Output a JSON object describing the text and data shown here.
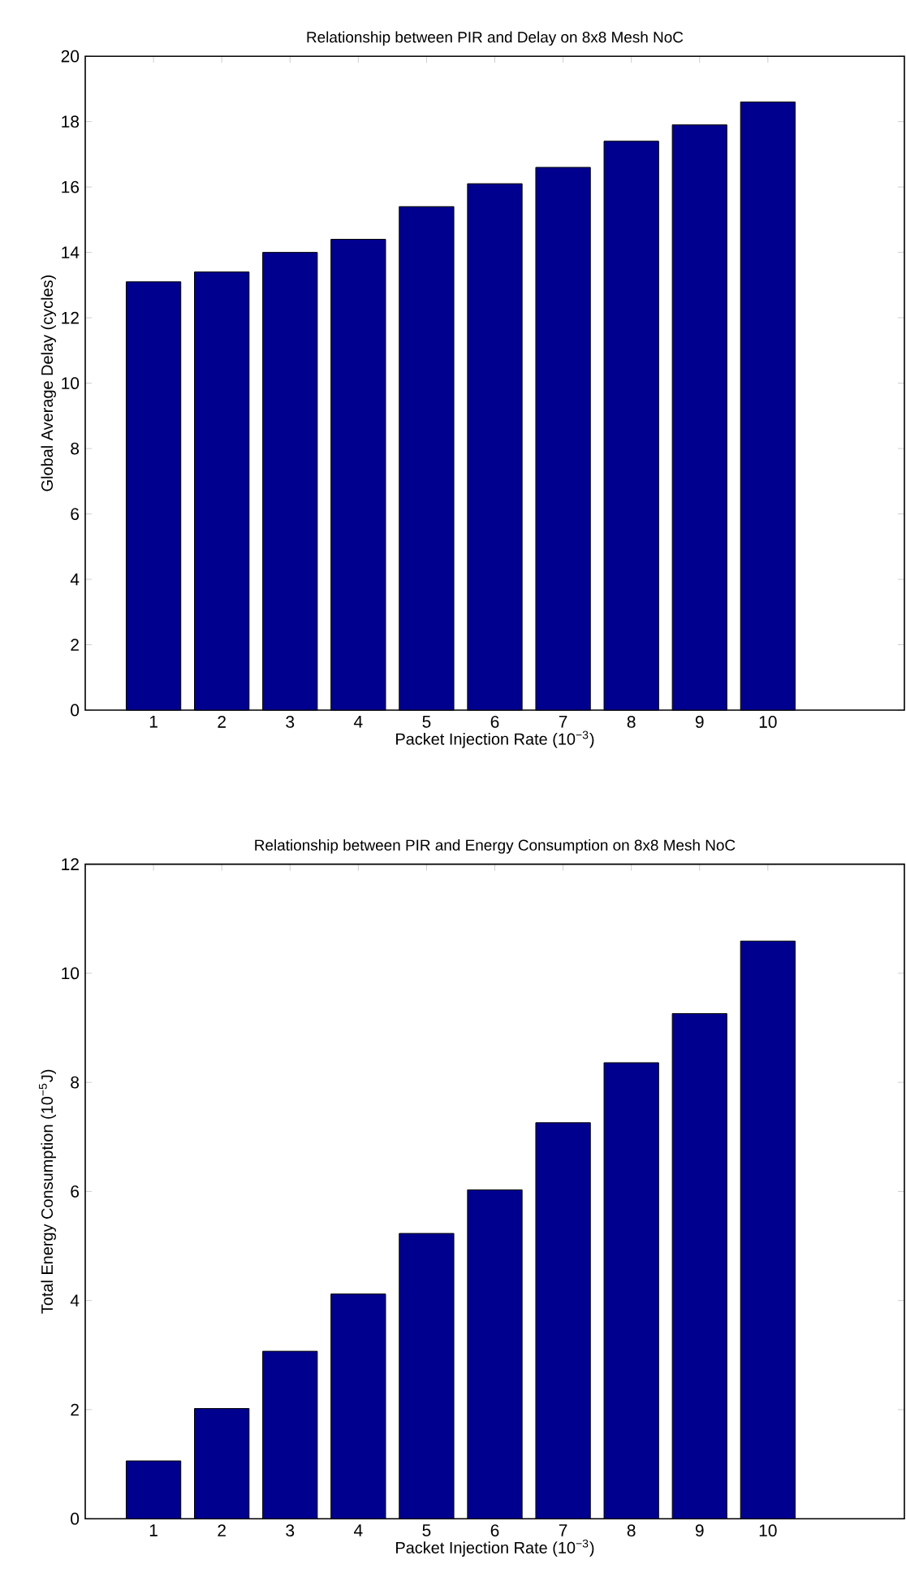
{
  "chart_data": [
    {
      "type": "bar",
      "title": "Relationship between PIR and Delay on 8x8 Mesh NoC",
      "xlabel": "Packet Injection Rate (10$^{−3}$)",
      "ylabel": "Global Average Delay (cycles)",
      "x": [
        1,
        2,
        3,
        4,
        5,
        6,
        7,
        8,
        9,
        10
      ],
      "values": [
        13.1,
        13.4,
        14.0,
        14.4,
        15.4,
        16.1,
        16.6,
        17.4,
        17.9,
        18.6
      ],
      "color": "#00008f",
      "xlim": [
        0,
        12
      ],
      "ylim": [
        0,
        20
      ],
      "xticks": [
        1,
        2,
        3,
        4,
        5,
        6,
        7,
        8,
        9,
        10
      ],
      "yticks": [
        0,
        2,
        4,
        6,
        8,
        10,
        12,
        14,
        16,
        18,
        20
      ]
    },
    {
      "type": "bar",
      "title": "Relationship between PIR and Energy Consumption on 8x8 Mesh NoC",
      "xlabel": "Packet Injection Rate (10$^{−3}$)",
      "ylabel": "Total Energy Consumption (10$^{−5}$J)",
      "x": [
        1,
        2,
        3,
        4,
        5,
        6,
        7,
        8,
        9,
        10
      ],
      "values": [
        1.06,
        2.02,
        3.07,
        4.12,
        5.23,
        6.03,
        7.26,
        8.36,
        9.26,
        10.59
      ],
      "color": "#00008f",
      "xlim": [
        0,
        12
      ],
      "ylim": [
        0,
        12
      ],
      "xticks": [
        1,
        2,
        3,
        4,
        5,
        6,
        7,
        8,
        9,
        10
      ],
      "yticks": [
        0,
        2,
        4,
        6,
        8,
        10,
        12
      ]
    }
  ]
}
